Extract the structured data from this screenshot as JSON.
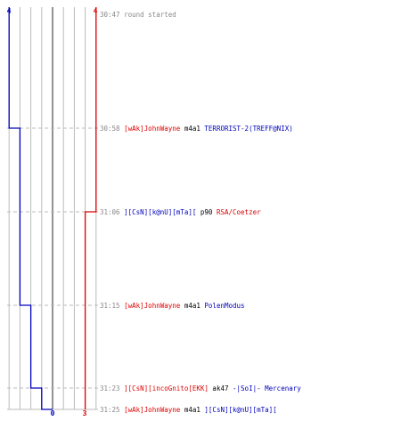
{
  "colors": {
    "team_red": "#dd0000",
    "team_blue": "#0000bb",
    "weapon": "#000000",
    "time": "#888888",
    "grid": "#bbbbbb",
    "grid_center": "#777777",
    "dashed": "#bbbbbb"
  },
  "axis": {
    "blue_top": "4",
    "red_top": "4",
    "blue_bottom": "0",
    "red_bottom": "3"
  },
  "events": [
    {
      "time": "30:47",
      "system": "round started",
      "blue_alive": 4,
      "red_alive": 4
    },
    {
      "time": "30:58",
      "killer": "[wAk]JohnWayne",
      "killer_team": "red",
      "weapon": "m4a1",
      "victim": "TERRORIST-2(TREFF@NIX)",
      "victim_team": "blue",
      "blue_alive": 3,
      "red_alive": 4
    },
    {
      "time": "31:06",
      "killer": "][CsN][k@nU][mTa][",
      "killer_team": "blue",
      "weapon": "p90",
      "victim": "RSA/Coetzer",
      "victim_team": "red",
      "blue_alive": 3,
      "red_alive": 3
    },
    {
      "time": "31:15",
      "killer": "[wAk]JohnWayne",
      "killer_team": "red",
      "weapon": "m4a1",
      "victim": "PolenModus",
      "victim_team": "blue",
      "blue_alive": 2,
      "red_alive": 3
    },
    {
      "time": "31:23",
      "killer": "][CsN][incoGnito[EKK]",
      "killer_team": "red",
      "weapon": "ak47",
      "victim": "-|SoI|- Mercenary",
      "victim_team": "blue",
      "blue_alive": 1,
      "red_alive": 3
    },
    {
      "time": "31:25",
      "killer": "[wAk]JohnWayne",
      "killer_team": "red",
      "weapon": "m4a1",
      "victim": "][CsN][k@nU][mTa][",
      "victim_team": "blue",
      "blue_alive": 0,
      "red_alive": 3
    }
  ]
}
